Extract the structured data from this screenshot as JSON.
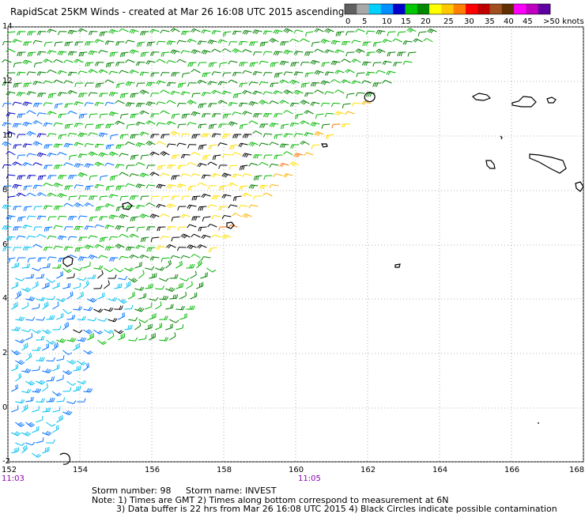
{
  "title": "RapidScat 25KM Winds - created at Mar 26 16:08 UTC 2015 ascending",
  "legend": {
    "labels": [
      "0",
      "5",
      "10",
      "15",
      "20",
      "25",
      "30",
      "35",
      "40",
      "45",
      ">50 knots"
    ],
    "colors": [
      "#606060",
      "#a8a8a8",
      "#00d0ff",
      "#0090ff",
      "#0000cc",
      "#00c800",
      "#008800",
      "#ffff00",
      "#ffc800",
      "#ff8000",
      "#ff0000",
      "#c00000",
      "#a05020",
      "#603000",
      "#ff00ff",
      "#c000c0",
      "#6000a0"
    ]
  },
  "axes": {
    "lat_labels": [
      "14",
      "12",
      "10",
      "8",
      "6",
      "4",
      "2",
      "0",
      "-2"
    ],
    "lon_labels": [
      "152",
      "154",
      "156",
      "158",
      "160",
      "162",
      "164",
      "166",
      "168"
    ]
  },
  "times": {
    "left": "11:03",
    "right": "11:05"
  },
  "storm": {
    "number_label": "Storm number: 98",
    "name_label": "Storm name: INVEST"
  },
  "notes": {
    "line1": "Note: 1) Times are GMT  2) Times along bottom correspond to measurement at 6N",
    "line2": "3) Data buffer is 22 hrs from Mar 26 16:08 UTC 2015  4) Black Circles indicate possible contamination"
  }
}
